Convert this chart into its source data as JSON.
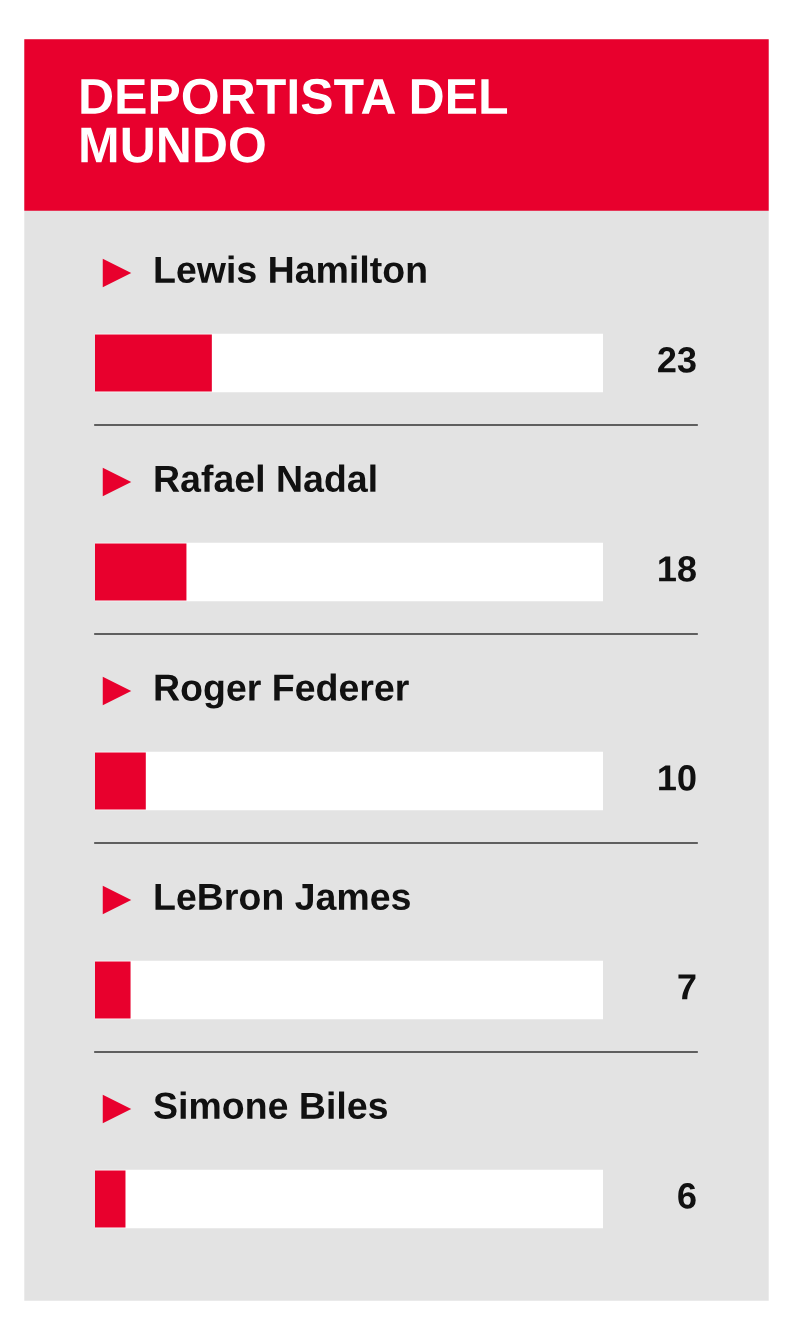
{
  "chart_data": {
    "type": "bar",
    "orientation": "horizontal",
    "title": "DEPORTISTA DEL\nMUNDO",
    "categories": [
      "Lewis Hamilton",
      "Rafael Nadal",
      "Roger Federer",
      "LeBron James",
      "Simone Biles"
    ],
    "values": [
      23,
      18,
      10,
      7,
      6
    ],
    "color": "#e8002d",
    "xlim": [
      0,
      100
    ],
    "tick_labels": false,
    "data_labels": true
  }
}
